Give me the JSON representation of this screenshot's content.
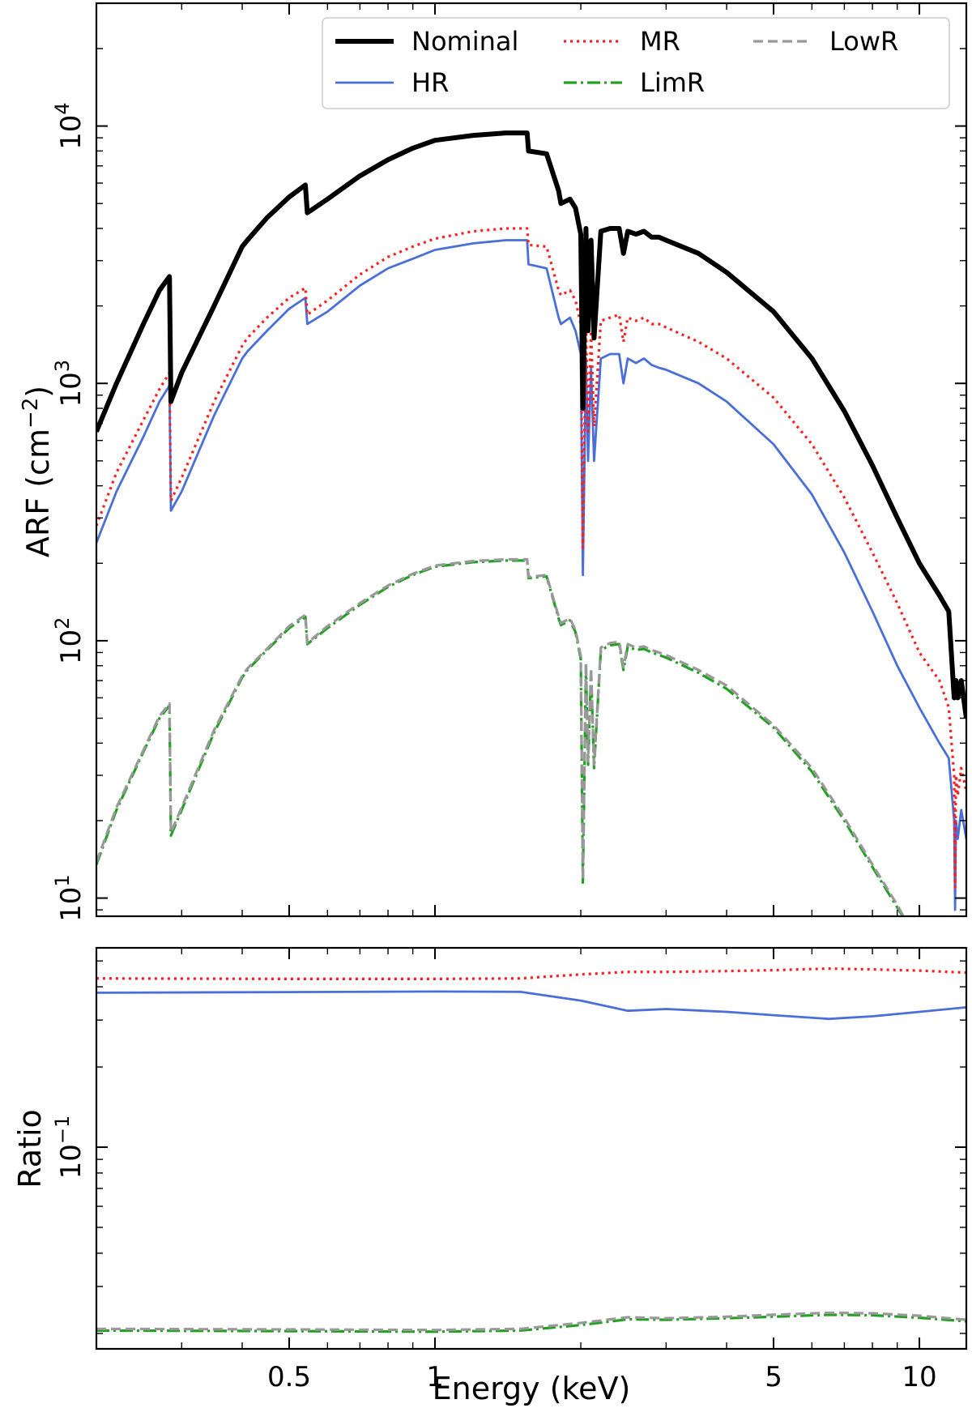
{
  "chart_data": [
    {
      "type": "line",
      "panel": "top",
      "ylabel_main": "ARF (cm",
      "ylabel_sup": "−2",
      "ylabel_tail": ")",
      "xscale": "log",
      "yscale": "log",
      "xlim": [
        0.2,
        12.5
      ],
      "ylim": [
        8.5,
        30000
      ],
      "yticks": [
        {
          "value": 10,
          "base": "10",
          "exp": "1"
        },
        {
          "value": 100,
          "base": "10",
          "exp": "2"
        },
        {
          "value": 1000,
          "base": "10",
          "exp": "3"
        },
        {
          "value": 10000,
          "base": "10",
          "exp": "4"
        }
      ],
      "legend": {
        "position": "top-right",
        "columns": 3
      },
      "series": [
        {
          "name": "Nominal",
          "color": "#000000",
          "style": "solid",
          "x": [
            0.2,
            0.22,
            0.25,
            0.27,
            0.283,
            0.285,
            0.3,
            0.35,
            0.4,
            0.41,
            0.45,
            0.5,
            0.54,
            0.545,
            0.6,
            0.7,
            0.8,
            0.9,
            1.0,
            1.2,
            1.4,
            1.55,
            1.56,
            1.7,
            1.8,
            1.82,
            1.9,
            1.95,
            2.0,
            2.02,
            2.05,
            2.07,
            2.1,
            2.13,
            2.2,
            2.3,
            2.4,
            2.45,
            2.5,
            2.6,
            2.7,
            2.8,
            2.9,
            3.0,
            3.5,
            4,
            5,
            6,
            7,
            8,
            9,
            10,
            11,
            11.5,
            11.8,
            11.9,
            12.0,
            12.2,
            12.5
          ],
          "y": [
            650,
            1000,
            1700,
            2300,
            2600,
            850,
            1100,
            2000,
            3400,
            3600,
            4400,
            5300,
            5900,
            4600,
            5200,
            6400,
            7400,
            8200,
            8800,
            9200,
            9400,
            9400,
            8000,
            7800,
            5600,
            5000,
            5200,
            4800,
            3800,
            800,
            4000,
            1600,
            3600,
            1500,
            3900,
            4000,
            4000,
            3200,
            3900,
            3800,
            3900,
            3700,
            3700,
            3600,
            3200,
            2700,
            1900,
            1250,
            780,
            480,
            300,
            200,
            150,
            130,
            60,
            70,
            60,
            70,
            50
          ]
        },
        {
          "name": "HR",
          "color": "#4a6fd8",
          "style": "solid",
          "x": [
            0.2,
            0.22,
            0.25,
            0.27,
            0.283,
            0.285,
            0.3,
            0.35,
            0.4,
            0.41,
            0.45,
            0.5,
            0.54,
            0.545,
            0.6,
            0.7,
            0.8,
            0.9,
            1.0,
            1.2,
            1.4,
            1.55,
            1.56,
            1.7,
            1.8,
            1.82,
            1.9,
            1.95,
            2.0,
            2.02,
            2.05,
            2.07,
            2.1,
            2.13,
            2.2,
            2.3,
            2.4,
            2.45,
            2.5,
            2.6,
            2.7,
            2.8,
            2.9,
            3.0,
            3.5,
            4,
            5,
            6,
            7,
            8,
            9,
            10,
            11,
            11.5,
            11.8,
            11.85,
            11.9,
            12.0,
            12.2,
            12.5
          ],
          "y": [
            240,
            380,
            620,
            850,
            980,
            320,
            380,
            750,
            1250,
            1330,
            1600,
            1950,
            2150,
            1700,
            1900,
            2400,
            2800,
            3050,
            3300,
            3500,
            3600,
            3600,
            2900,
            2800,
            1800,
            1700,
            1800,
            1600,
            1300,
            180,
            1250,
            500,
            1150,
            500,
            1250,
            1300,
            1300,
            1000,
            1250,
            1200,
            1250,
            1180,
            1150,
            1130,
            1000,
            850,
            580,
            370,
            220,
            130,
            80,
            55,
            40,
            35,
            20,
            9,
            20,
            17,
            22,
            17
          ]
        },
        {
          "name": "MR",
          "color": "#ff1f1f",
          "style": "dotted",
          "x": [
            0.2,
            0.22,
            0.25,
            0.27,
            0.283,
            0.285,
            0.3,
            0.35,
            0.4,
            0.41,
            0.45,
            0.5,
            0.54,
            0.545,
            0.6,
            0.7,
            0.8,
            0.9,
            1.0,
            1.2,
            1.4,
            1.55,
            1.56,
            1.7,
            1.8,
            1.82,
            1.9,
            1.95,
            2.0,
            2.02,
            2.05,
            2.07,
            2.1,
            2.13,
            2.2,
            2.3,
            2.4,
            2.45,
            2.5,
            2.6,
            2.7,
            2.8,
            2.9,
            3.0,
            3.5,
            4,
            5,
            6,
            7,
            8,
            9,
            10,
            11,
            11.5,
            11.8,
            11.85,
            11.9,
            12.0,
            12.2,
            12.5
          ],
          "y": [
            280,
            450,
            720,
            950,
            1100,
            350,
            430,
            850,
            1400,
            1500,
            1800,
            2150,
            2350,
            1850,
            2100,
            2650,
            3100,
            3400,
            3650,
            3900,
            4000,
            4000,
            3450,
            3400,
            2300,
            2200,
            2300,
            2100,
            1700,
            230,
            1700,
            650,
            1600,
            680,
            1750,
            1800,
            1850,
            1450,
            1800,
            1750,
            1800,
            1700,
            1700,
            1650,
            1450,
            1250,
            880,
            580,
            360,
            220,
            140,
            90,
            70,
            55,
            30,
            11,
            30,
            25,
            32,
            26
          ]
        },
        {
          "name": "LimR",
          "color": "#22a022",
          "style": "dashdot",
          "x": [
            0.2,
            0.22,
            0.25,
            0.27,
            0.283,
            0.285,
            0.3,
            0.35,
            0.4,
            0.41,
            0.45,
            0.5,
            0.54,
            0.545,
            0.6,
            0.7,
            0.8,
            0.9,
            1.0,
            1.2,
            1.4,
            1.55,
            1.56,
            1.7,
            1.8,
            1.82,
            1.9,
            1.95,
            2.0,
            2.02,
            2.05,
            2.07,
            2.1,
            2.13,
            2.2,
            2.3,
            2.4,
            2.45,
            2.5,
            2.6,
            2.7,
            2.8,
            2.9,
            3.0,
            3.5,
            4,
            5,
            6,
            7,
            8,
            9,
            9.5
          ],
          "y": [
            13.5,
            22,
            37,
            50,
            56,
            17.5,
            22,
            44,
            72,
            77,
            92,
            112,
            124,
            97,
            112,
            138,
            162,
            180,
            194,
            202,
            205,
            205,
            175,
            178,
            122,
            115,
            120,
            108,
            85,
            11.5,
            80,
            33,
            76,
            32,
            92,
            96,
            97,
            77,
            95,
            92,
            93,
            90,
            88,
            86,
            75,
            65,
            46,
            31,
            20,
            13.2,
            9.2,
            7.5
          ]
        },
        {
          "name": "LowR",
          "color": "#999999",
          "style": "dashed",
          "x": [
            0.2,
            0.22,
            0.25,
            0.27,
            0.283,
            0.285,
            0.3,
            0.35,
            0.4,
            0.41,
            0.45,
            0.5,
            0.54,
            0.545,
            0.6,
            0.7,
            0.8,
            0.9,
            1.0,
            1.2,
            1.4,
            1.55,
            1.56,
            1.7,
            1.8,
            1.82,
            1.9,
            1.95,
            2.0,
            2.02,
            2.05,
            2.07,
            2.1,
            2.13,
            2.2,
            2.3,
            2.4,
            2.45,
            2.5,
            2.6,
            2.7,
            2.8,
            2.9,
            3.0,
            3.5,
            4,
            5,
            6,
            7,
            8,
            9,
            9.5
          ],
          "y": [
            13.8,
            22.5,
            37.5,
            51,
            57,
            18,
            22.5,
            45,
            73,
            78,
            93,
            114,
            126,
            98,
            114,
            140,
            164,
            182,
            196,
            204,
            207,
            207,
            177,
            180,
            124,
            117,
            122,
            110,
            87,
            11.8,
            82,
            34,
            78,
            33,
            94,
            98,
            99,
            79,
            97,
            94,
            95,
            92,
            90,
            88,
            77,
            67,
            47,
            32,
            20.5,
            13.5,
            9.4,
            7.6
          ]
        }
      ]
    },
    {
      "type": "line",
      "panel": "bottom",
      "xlabel": "Energy (keV)",
      "ylabel": "Ratio",
      "xscale": "log",
      "yscale": "log",
      "xlim": [
        0.2,
        12.5
      ],
      "ylim": [
        0.0175,
        0.56
      ],
      "xticks": [
        {
          "value": 0.5,
          "label": "0.5"
        },
        {
          "value": 1,
          "label": "1"
        },
        {
          "value": 5,
          "label": "5"
        },
        {
          "value": 10,
          "label": "10"
        }
      ],
      "yticks": [
        {
          "value": 0.1,
          "base": "10",
          "exp": "−1"
        }
      ],
      "series": [
        {
          "name": "HR",
          "color": "#4a6fd8",
          "style": "solid",
          "x": [
            0.2,
            0.5,
            1,
            1.5,
            2,
            2.5,
            3,
            4,
            5,
            6.5,
            8,
            10,
            12.5
          ],
          "y": [
            0.38,
            0.382,
            0.384,
            0.383,
            0.355,
            0.325,
            0.33,
            0.322,
            0.313,
            0.303,
            0.31,
            0.322,
            0.335
          ]
        },
        {
          "name": "MR",
          "color": "#ff1f1f",
          "style": "dotted",
          "x": [
            0.2,
            0.5,
            1,
            1.5,
            2,
            2.5,
            3,
            4,
            5,
            6.5,
            8,
            10,
            12.5
          ],
          "y": [
            0.43,
            0.428,
            0.428,
            0.43,
            0.445,
            0.455,
            0.455,
            0.458,
            0.462,
            0.468,
            0.465,
            0.46,
            0.452
          ]
        },
        {
          "name": "LimR",
          "color": "#22a022",
          "style": "dashdot",
          "x": [
            0.2,
            0.5,
            1,
            1.5,
            2,
            2.5,
            3,
            4,
            5,
            6.5,
            8,
            10,
            12.5
          ],
          "y": [
            0.0205,
            0.0204,
            0.0203,
            0.0205,
            0.0215,
            0.0226,
            0.0225,
            0.0228,
            0.0231,
            0.0235,
            0.0234,
            0.0229,
            0.0222
          ]
        },
        {
          "name": "LowR",
          "color": "#999999",
          "style": "dashed",
          "x": [
            0.2,
            0.5,
            1,
            1.5,
            2,
            2.5,
            3,
            4,
            5,
            6.5,
            8,
            10,
            12.5
          ],
          "y": [
            0.0208,
            0.0207,
            0.0206,
            0.0208,
            0.0219,
            0.023,
            0.0228,
            0.0231,
            0.0235,
            0.0239,
            0.0238,
            0.0233,
            0.0225
          ]
        }
      ]
    }
  ]
}
